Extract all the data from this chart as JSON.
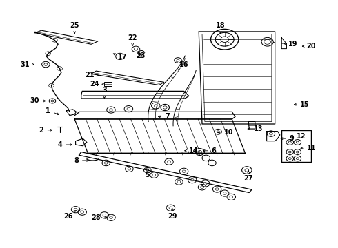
{
  "bg_color": "#ffffff",
  "fig_width": 4.9,
  "fig_height": 3.6,
  "dpi": 100,
  "label_positions": {
    "1": [
      0.175,
      0.535,
      0.135,
      0.555
    ],
    "2": [
      0.155,
      0.475,
      0.115,
      0.475
    ],
    "3": [
      0.305,
      0.595,
      0.305,
      0.64
    ],
    "4": [
      0.215,
      0.415,
      0.17,
      0.415
    ],
    "5": [
      0.435,
      0.325,
      0.435,
      0.29
    ],
    "6": [
      0.595,
      0.39,
      0.635,
      0.39
    ],
    "7": [
      0.46,
      0.53,
      0.495,
      0.53
    ],
    "8": [
      0.265,
      0.35,
      0.22,
      0.35
    ],
    "9": [
      0.83,
      0.44,
      0.87,
      0.44
    ],
    "10": [
      0.64,
      0.465,
      0.68,
      0.465
    ],
    "11": [
      0.89,
      0.4,
      0.93,
      0.4
    ],
    "12": [
      0.86,
      0.45,
      0.9,
      0.45
    ],
    "13": [
      0.73,
      0.48,
      0.77,
      0.48
    ],
    "14": [
      0.54,
      0.39,
      0.575,
      0.39
    ],
    "15": [
      0.87,
      0.58,
      0.91,
      0.58
    ],
    "16": [
      0.52,
      0.76,
      0.545,
      0.745
    ],
    "17": [
      0.33,
      0.79,
      0.36,
      0.775
    ],
    "18": [
      0.655,
      0.87,
      0.655,
      0.905
    ],
    "19": [
      0.84,
      0.83,
      0.875,
      0.83
    ],
    "20": [
      0.895,
      0.82,
      0.93,
      0.82
    ],
    "21": [
      0.295,
      0.7,
      0.26,
      0.7
    ],
    "22": [
      0.39,
      0.82,
      0.39,
      0.855
    ],
    "23": [
      0.415,
      0.8,
      0.415,
      0.78
    ],
    "24": [
      0.31,
      0.665,
      0.275,
      0.665
    ],
    "25": [
      0.215,
      0.87,
      0.215,
      0.905
    ],
    "26": [
      0.22,
      0.145,
      0.195,
      0.12
    ],
    "27": [
      0.74,
      0.31,
      0.74,
      0.275
    ],
    "28": [
      0.32,
      0.115,
      0.28,
      0.115
    ],
    "29": [
      0.51,
      0.155,
      0.51,
      0.12
    ],
    "30": [
      0.135,
      0.595,
      0.095,
      0.595
    ],
    "31": [
      0.1,
      0.745,
      0.065,
      0.745
    ]
  }
}
